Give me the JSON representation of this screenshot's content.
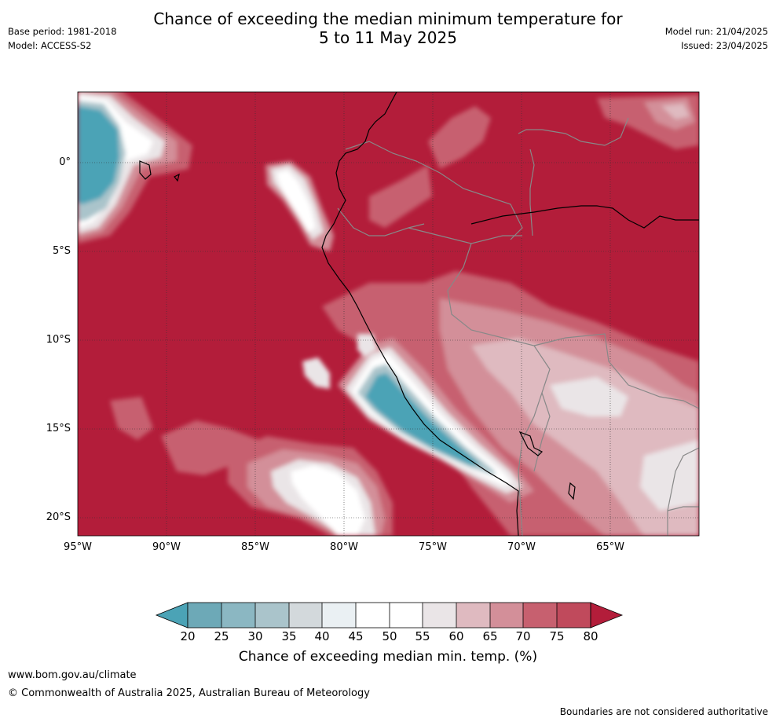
{
  "header": {
    "title_line1": "Chance of exceeding the median minimum temperature for",
    "title_line2": "5 to 11 May 2025",
    "base_period": "Base period: 1981-2018",
    "model": "Model: ACCESS-S2",
    "model_run": "Model run: 21/04/2025",
    "issued": "Issued: 23/04/2025"
  },
  "map": {
    "lat_labels": [
      "0°",
      "5°S",
      "10°S",
      "15°S",
      "20°S"
    ],
    "lon_labels": [
      "95°W",
      "90°W",
      "85°W",
      "80°W",
      "75°W",
      "70°W",
      "65°W"
    ],
    "extent": {
      "west": -95,
      "east": -60,
      "north": 4,
      "south": -21
    },
    "colors": {
      "c20": "#4ba3b6",
      "c25": "#6da9b7",
      "c30": "#8bb7c2",
      "c35": "#aac4cb",
      "c40": "#d3d9dc",
      "c45": "#eaf0f3",
      "c50": "#ffffff",
      "c55": "#ffffff",
      "c60": "#eae5e7",
      "c65": "#dfbac0",
      "c70": "#d38f99",
      "c75": "#c7606f",
      "c80": "#b31d3a"
    }
  },
  "colorbar": {
    "ticks": [
      "20",
      "25",
      "30",
      "35",
      "40",
      "45",
      "50",
      "55",
      "60",
      "65",
      "70",
      "75",
      "80"
    ],
    "label": "Chance of exceeding median min. temp. (%)"
  },
  "footer": {
    "url": "www.bom.gov.au/climate",
    "copyright": "© Commonwealth of Australia 2025, Australian Bureau of Meteorology",
    "disclaimer": "Boundaries are not considered authoritative"
  }
}
